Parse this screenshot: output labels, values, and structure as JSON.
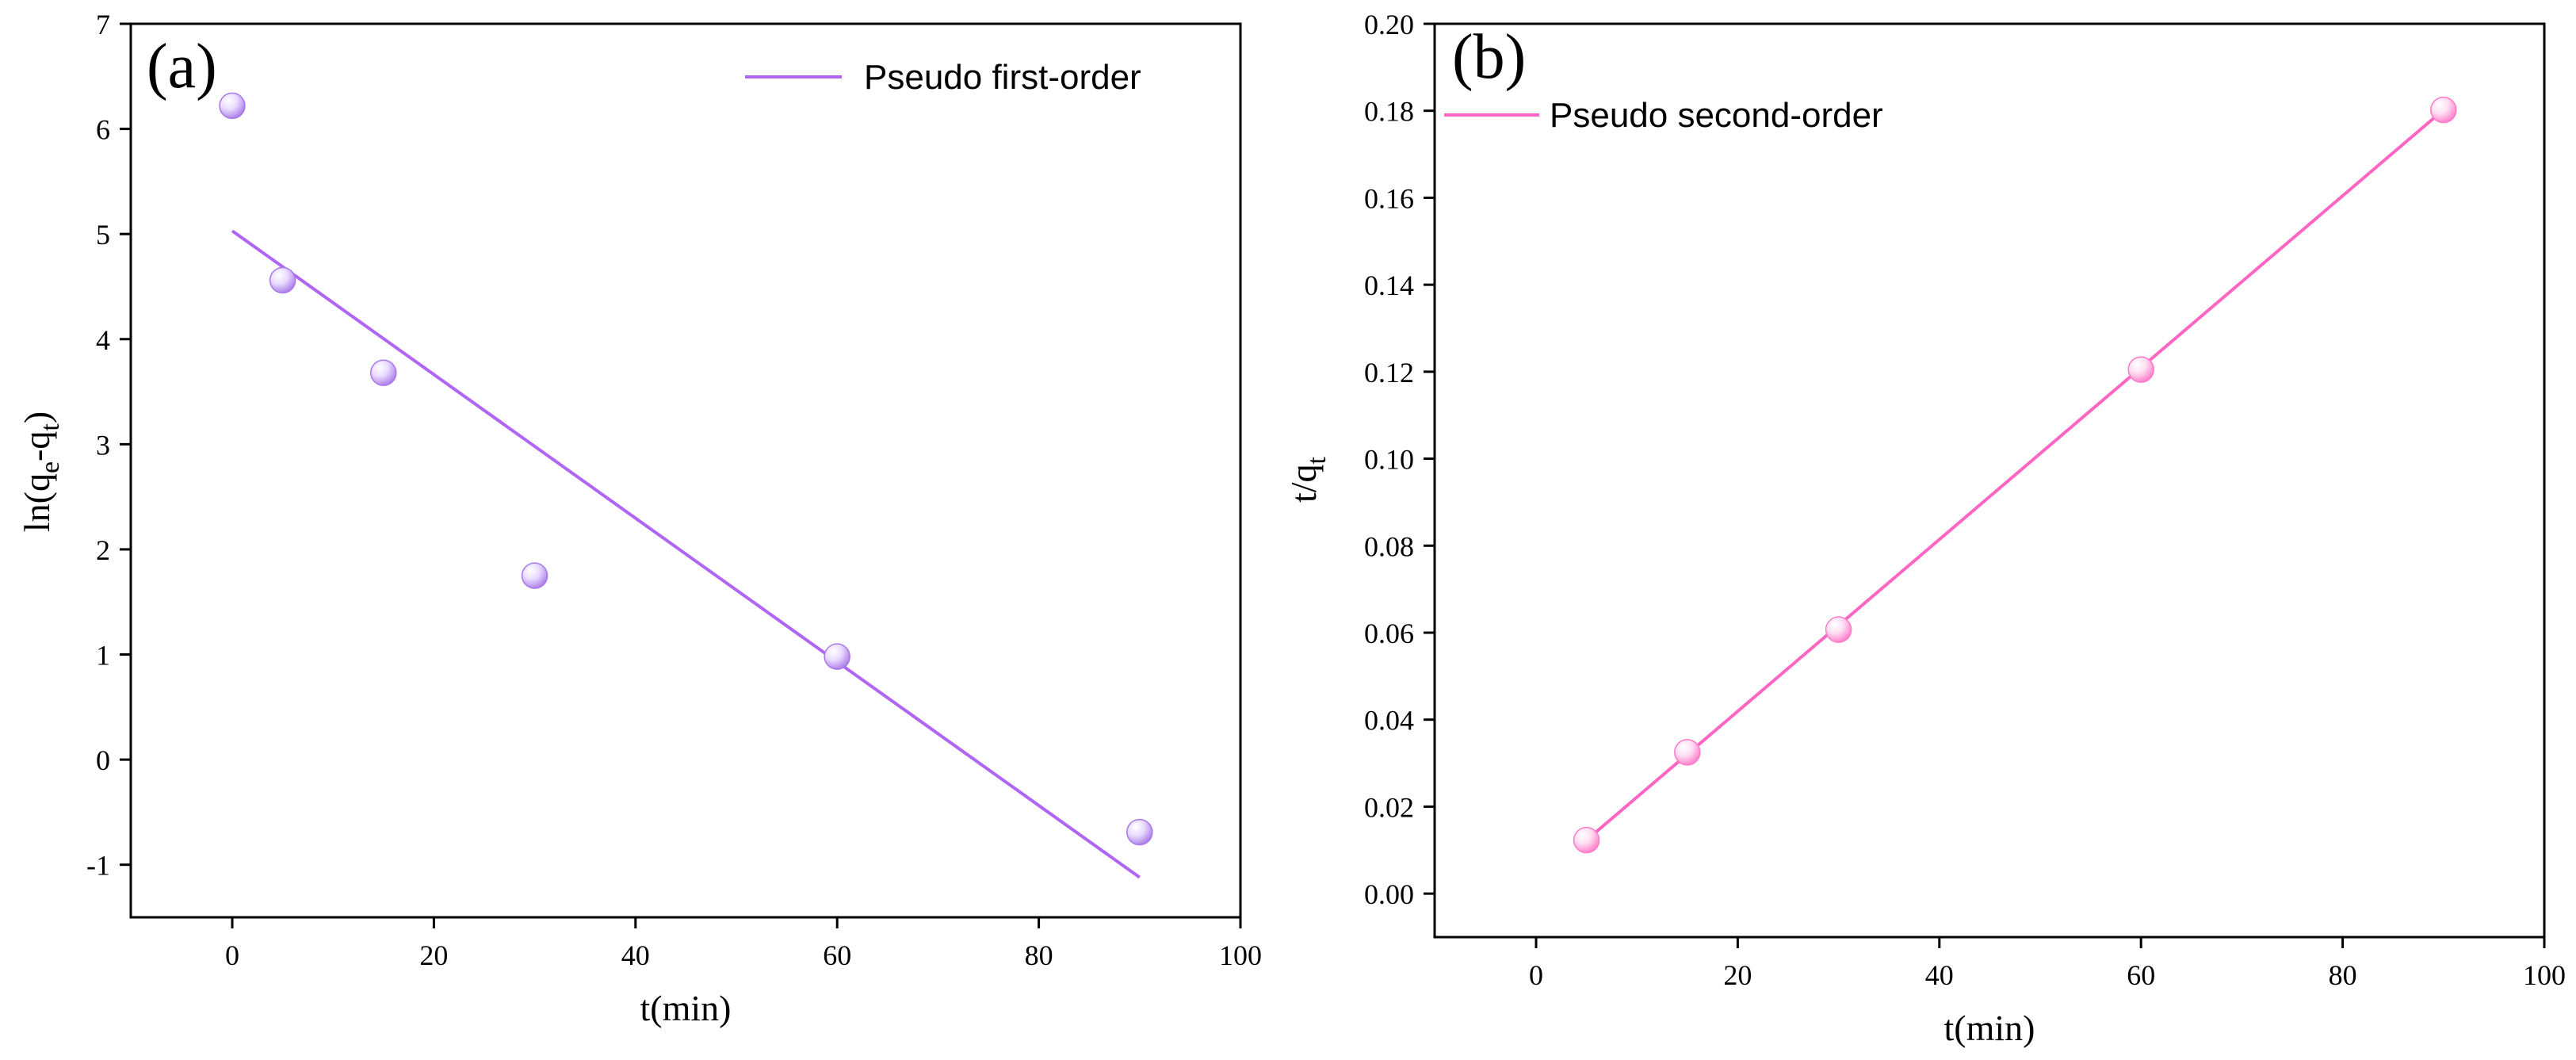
{
  "colors": {
    "panel_a_line": "#b065f4",
    "panel_a_point": "#a978e8",
    "panel_a_point_light": "#eadcff",
    "panel_b_line": "#ff66c4",
    "panel_b_point": "#ff7ac9",
    "panel_b_point_light": "#ffe0f3",
    "axis": "#000000"
  },
  "chart_data": [
    {
      "id": "a",
      "type": "scatter",
      "panel_label": "(a)",
      "xlabel": "t(min)",
      "ylabel": {
        "prefix": "ln(q",
        "sub1": "e",
        "mid": "-q",
        "sub2": "t",
        "suffix": ")"
      },
      "xlim": [
        -10,
        100
      ],
      "ylim": [
        -1.5,
        7
      ],
      "xticks": [
        0,
        20,
        40,
        60,
        80,
        100
      ],
      "yticks": [
        -1,
        0,
        1,
        2,
        3,
        4,
        5,
        6,
        7
      ],
      "ytick_labels": [
        "-1",
        "0",
        "1",
        "2",
        "3",
        "4",
        "5",
        "6",
        "7"
      ],
      "points": {
        "x": [
          0,
          5,
          15,
          30,
          60,
          90
        ],
        "y": [
          6.22,
          4.56,
          3.68,
          1.75,
          0.98,
          -0.69
        ]
      },
      "fit": {
        "name": "Pseudo first-order",
        "x": [
          0,
          90
        ],
        "y": [
          5.03,
          -1.12
        ]
      },
      "legend": "top-right"
    },
    {
      "id": "b",
      "type": "scatter",
      "panel_label": "(b)",
      "xlabel": "t(min)",
      "ylabel": {
        "prefix": "t/q",
        "sub1": "t",
        "mid": "",
        "sub2": "",
        "suffix": ""
      },
      "xlim": [
        -10,
        100
      ],
      "ylim": [
        -0.01,
        0.2
      ],
      "xticks": [
        0,
        20,
        40,
        60,
        80,
        100
      ],
      "yticks": [
        0,
        0.02,
        0.04,
        0.06,
        0.08,
        0.1,
        0.12,
        0.14,
        0.16,
        0.18,
        0.2
      ],
      "ytick_labels": [
        "0.00",
        "0.02",
        "0.04",
        "0.06",
        "0.08",
        "0.10",
        "0.12",
        "0.14",
        "0.16",
        "0.18",
        "0.20"
      ],
      "points": {
        "x": [
          5,
          15,
          30,
          60,
          90
        ],
        "y": [
          0.0123,
          0.0325,
          0.0607,
          0.1205,
          0.1802
        ]
      },
      "fit": {
        "name": "Pseudo second-order",
        "x": [
          5,
          90
        ],
        "y": [
          0.0123,
          0.1802
        ]
      },
      "legend": "top-left"
    }
  ]
}
